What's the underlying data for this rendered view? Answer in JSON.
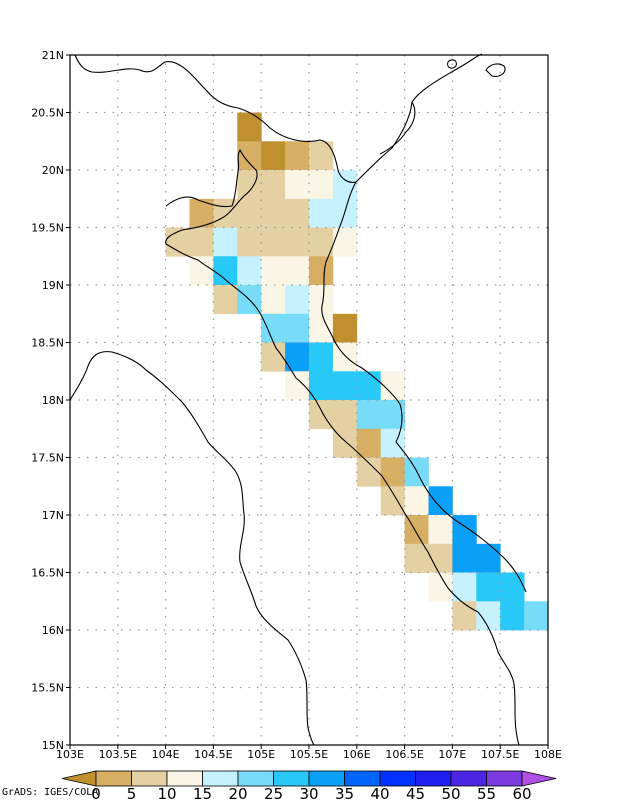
{
  "credit": "GrADS: IGES/COLA",
  "map": {
    "lon_range": [
      103,
      108
    ],
    "lat_range": [
      15,
      21
    ],
    "cell_deg": 0.25,
    "x_ticks": [
      "103E",
      "103.5E",
      "104E",
      "104.5E",
      "105E",
      "105.5E",
      "106E",
      "106.5E",
      "107E",
      "107.5E",
      "108E"
    ],
    "y_ticks": [
      "21N",
      "20.5N",
      "20N",
      "19.5N",
      "19N",
      "18.5N",
      "18N",
      "17.5N",
      "17N",
      "16.5N",
      "16N",
      "15.5N",
      "15N"
    ],
    "gridlines": true
  },
  "colorbar": {
    "levels": [
      "0",
      "5",
      "10",
      "15",
      "20",
      "25",
      "30",
      "35",
      "40",
      "45",
      "50",
      "55",
      "60"
    ],
    "colors": [
      "#c0902e",
      "#d6ae64",
      "#e4d0a2",
      "#fbf5e5",
      "#c6f2ff",
      "#78dcf8",
      "#28c8f8",
      "#0aa0f8",
      "#0064f8",
      "#0032ff",
      "#1e1eef",
      "#4b24e5",
      "#7a3ae0",
      "#b050e4"
    ]
  },
  "chart_data": {
    "type": "heatmap",
    "units_note": "cells are [lon_min, lat_min, color_index] on a 0.25 degree grid",
    "cells": [
      [
        104.75,
        20.25,
        0
      ],
      [
        104.75,
        20.0,
        1
      ],
      [
        105.0,
        20.0,
        0
      ],
      [
        105.25,
        20.0,
        1
      ],
      [
        105.5,
        20.0,
        2
      ],
      [
        104.75,
        19.75,
        2
      ],
      [
        105.0,
        19.75,
        2
      ],
      [
        105.25,
        19.75,
        3
      ],
      [
        105.5,
        19.75,
        3
      ],
      [
        105.75,
        19.75,
        4
      ],
      [
        104.25,
        19.5,
        1
      ],
      [
        104.5,
        19.5,
        2
      ],
      [
        104.75,
        19.5,
        2
      ],
      [
        105.0,
        19.5,
        2
      ],
      [
        105.25,
        19.5,
        2
      ],
      [
        105.5,
        19.5,
        4
      ],
      [
        105.75,
        19.5,
        4
      ],
      [
        104.0,
        19.25,
        2
      ],
      [
        104.25,
        19.25,
        2
      ],
      [
        104.5,
        19.25,
        4
      ],
      [
        104.75,
        19.25,
        2
      ],
      [
        105.0,
        19.25,
        2
      ],
      [
        105.25,
        19.25,
        2
      ],
      [
        105.5,
        19.25,
        2
      ],
      [
        105.75,
        19.25,
        3
      ],
      [
        104.25,
        19.0,
        3
      ],
      [
        104.5,
        19.0,
        6
      ],
      [
        104.75,
        19.0,
        4
      ],
      [
        105.0,
        19.0,
        3
      ],
      [
        105.25,
        19.0,
        3
      ],
      [
        105.5,
        19.0,
        1
      ],
      [
        104.5,
        18.75,
        2
      ],
      [
        104.75,
        18.75,
        5
      ],
      [
        105.0,
        18.75,
        3
      ],
      [
        105.25,
        18.75,
        4
      ],
      [
        105.5,
        18.75,
        3
      ],
      [
        105.0,
        18.5,
        5
      ],
      [
        105.25,
        18.5,
        5
      ],
      [
        105.5,
        18.5,
        3
      ],
      [
        105.75,
        18.5,
        0
      ],
      [
        105.0,
        18.25,
        2
      ],
      [
        105.25,
        18.25,
        7
      ],
      [
        105.5,
        18.25,
        6
      ],
      [
        105.75,
        18.25,
        3
      ],
      [
        105.25,
        18.0,
        3
      ],
      [
        105.5,
        18.0,
        6
      ],
      [
        105.75,
        18.0,
        6
      ],
      [
        106.0,
        18.0,
        6
      ],
      [
        106.25,
        18.0,
        3
      ],
      [
        105.5,
        17.75,
        2
      ],
      [
        105.75,
        17.75,
        2
      ],
      [
        106.0,
        17.75,
        5
      ],
      [
        106.25,
        17.75,
        5
      ],
      [
        105.75,
        17.5,
        2
      ],
      [
        106.0,
        17.5,
        1
      ],
      [
        106.25,
        17.5,
        4
      ],
      [
        106.0,
        17.25,
        2
      ],
      [
        106.25,
        17.25,
        1
      ],
      [
        106.5,
        17.25,
        5
      ],
      [
        106.25,
        17.0,
        2
      ],
      [
        106.5,
        17.0,
        3
      ],
      [
        106.75,
        17.0,
        7
      ],
      [
        106.5,
        16.75,
        1
      ],
      [
        106.75,
        16.75,
        3
      ],
      [
        107.0,
        16.75,
        7
      ],
      [
        106.5,
        16.5,
        2
      ],
      [
        106.75,
        16.5,
        2
      ],
      [
        107.0,
        16.5,
        7
      ],
      [
        107.25,
        16.5,
        7
      ],
      [
        106.75,
        16.25,
        3
      ],
      [
        107.0,
        16.25,
        4
      ],
      [
        107.25,
        16.25,
        6
      ],
      [
        107.5,
        16.25,
        6
      ],
      [
        107.0,
        16.0,
        2
      ],
      [
        107.25,
        16.0,
        4
      ],
      [
        107.5,
        16.0,
        6
      ],
      [
        107.75,
        16.0,
        5
      ]
    ]
  }
}
